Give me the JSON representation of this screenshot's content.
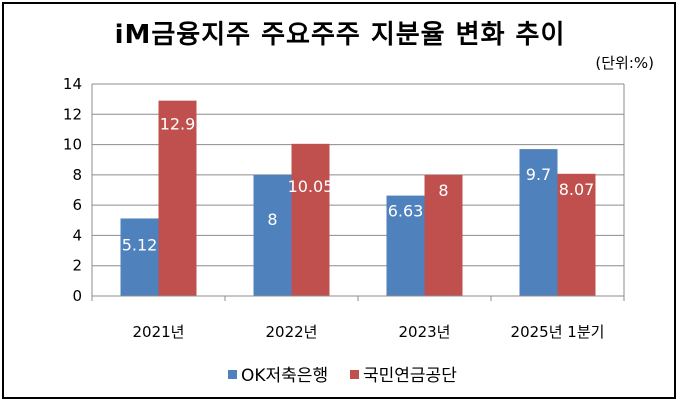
{
  "title": "iM금융지주 주요주주 지분율 변화 추이",
  "unit_note": "(단위:%)",
  "chart_data": {
    "type": "bar",
    "title": "iM금융지주 주요주주 지분율 변화 추이",
    "categories": [
      "2021년",
      "2022년",
      "2023년",
      "2025년 1분기"
    ],
    "series": [
      {
        "name": "OK저축은행",
        "values": [
          5.12,
          8,
          6.63,
          9.7
        ],
        "labels": [
          "5.12",
          "8",
          "6.63",
          "9.7"
        ],
        "color": "#4f81bd"
      },
      {
        "name": "국민연금공단",
        "values": [
          12.9,
          10.05,
          8,
          8.07
        ],
        "labels": [
          "12.9",
          "10.05",
          "8",
          "8.07"
        ],
        "color": "#c0504d"
      }
    ],
    "ylim": [
      0,
      14
    ],
    "yticks": [
      0,
      2,
      4,
      6,
      8,
      10,
      12,
      14
    ],
    "grid": true,
    "legend": "bottom"
  }
}
